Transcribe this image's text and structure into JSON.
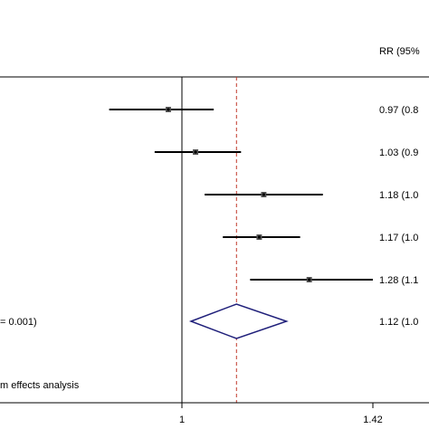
{
  "chart_data": {
    "type": "forest",
    "header_right": "RR (95%",
    "left_texts": [
      "= 0.001)",
      "m effects analysis"
    ],
    "x_ticks": [
      {
        "value": 1,
        "label": "1"
      },
      {
        "value": 1.42,
        "label": "1.42"
      }
    ],
    "null_line": 1,
    "pooled_reference": 1.12,
    "xlim": [
      0.5,
      1.6
    ],
    "studies": [
      {
        "rr": 0.97,
        "lower": 0.84,
        "upper": 1.07,
        "text": "0.97 (0.8"
      },
      {
        "rr": 1.03,
        "lower": 0.94,
        "upper": 1.13,
        "text": "1.03 (0.9"
      },
      {
        "rr": 1.18,
        "lower": 1.05,
        "upper": 1.31,
        "text": "1.18 (1.0"
      },
      {
        "rr": 1.17,
        "lower": 1.09,
        "upper": 1.26,
        "text": "1.17 (1.0"
      },
      {
        "rr": 1.28,
        "lower": 1.15,
        "upper": 1.42,
        "text": "1.28 (1.1"
      }
    ],
    "pooled": {
      "rr": 1.12,
      "lower": 1.02,
      "upper": 1.23,
      "text": "1.12 (1.0"
    },
    "colors": {
      "diamond": "#1f1f7a",
      "reference_line": "#c0392b",
      "lines": "#000000"
    }
  }
}
